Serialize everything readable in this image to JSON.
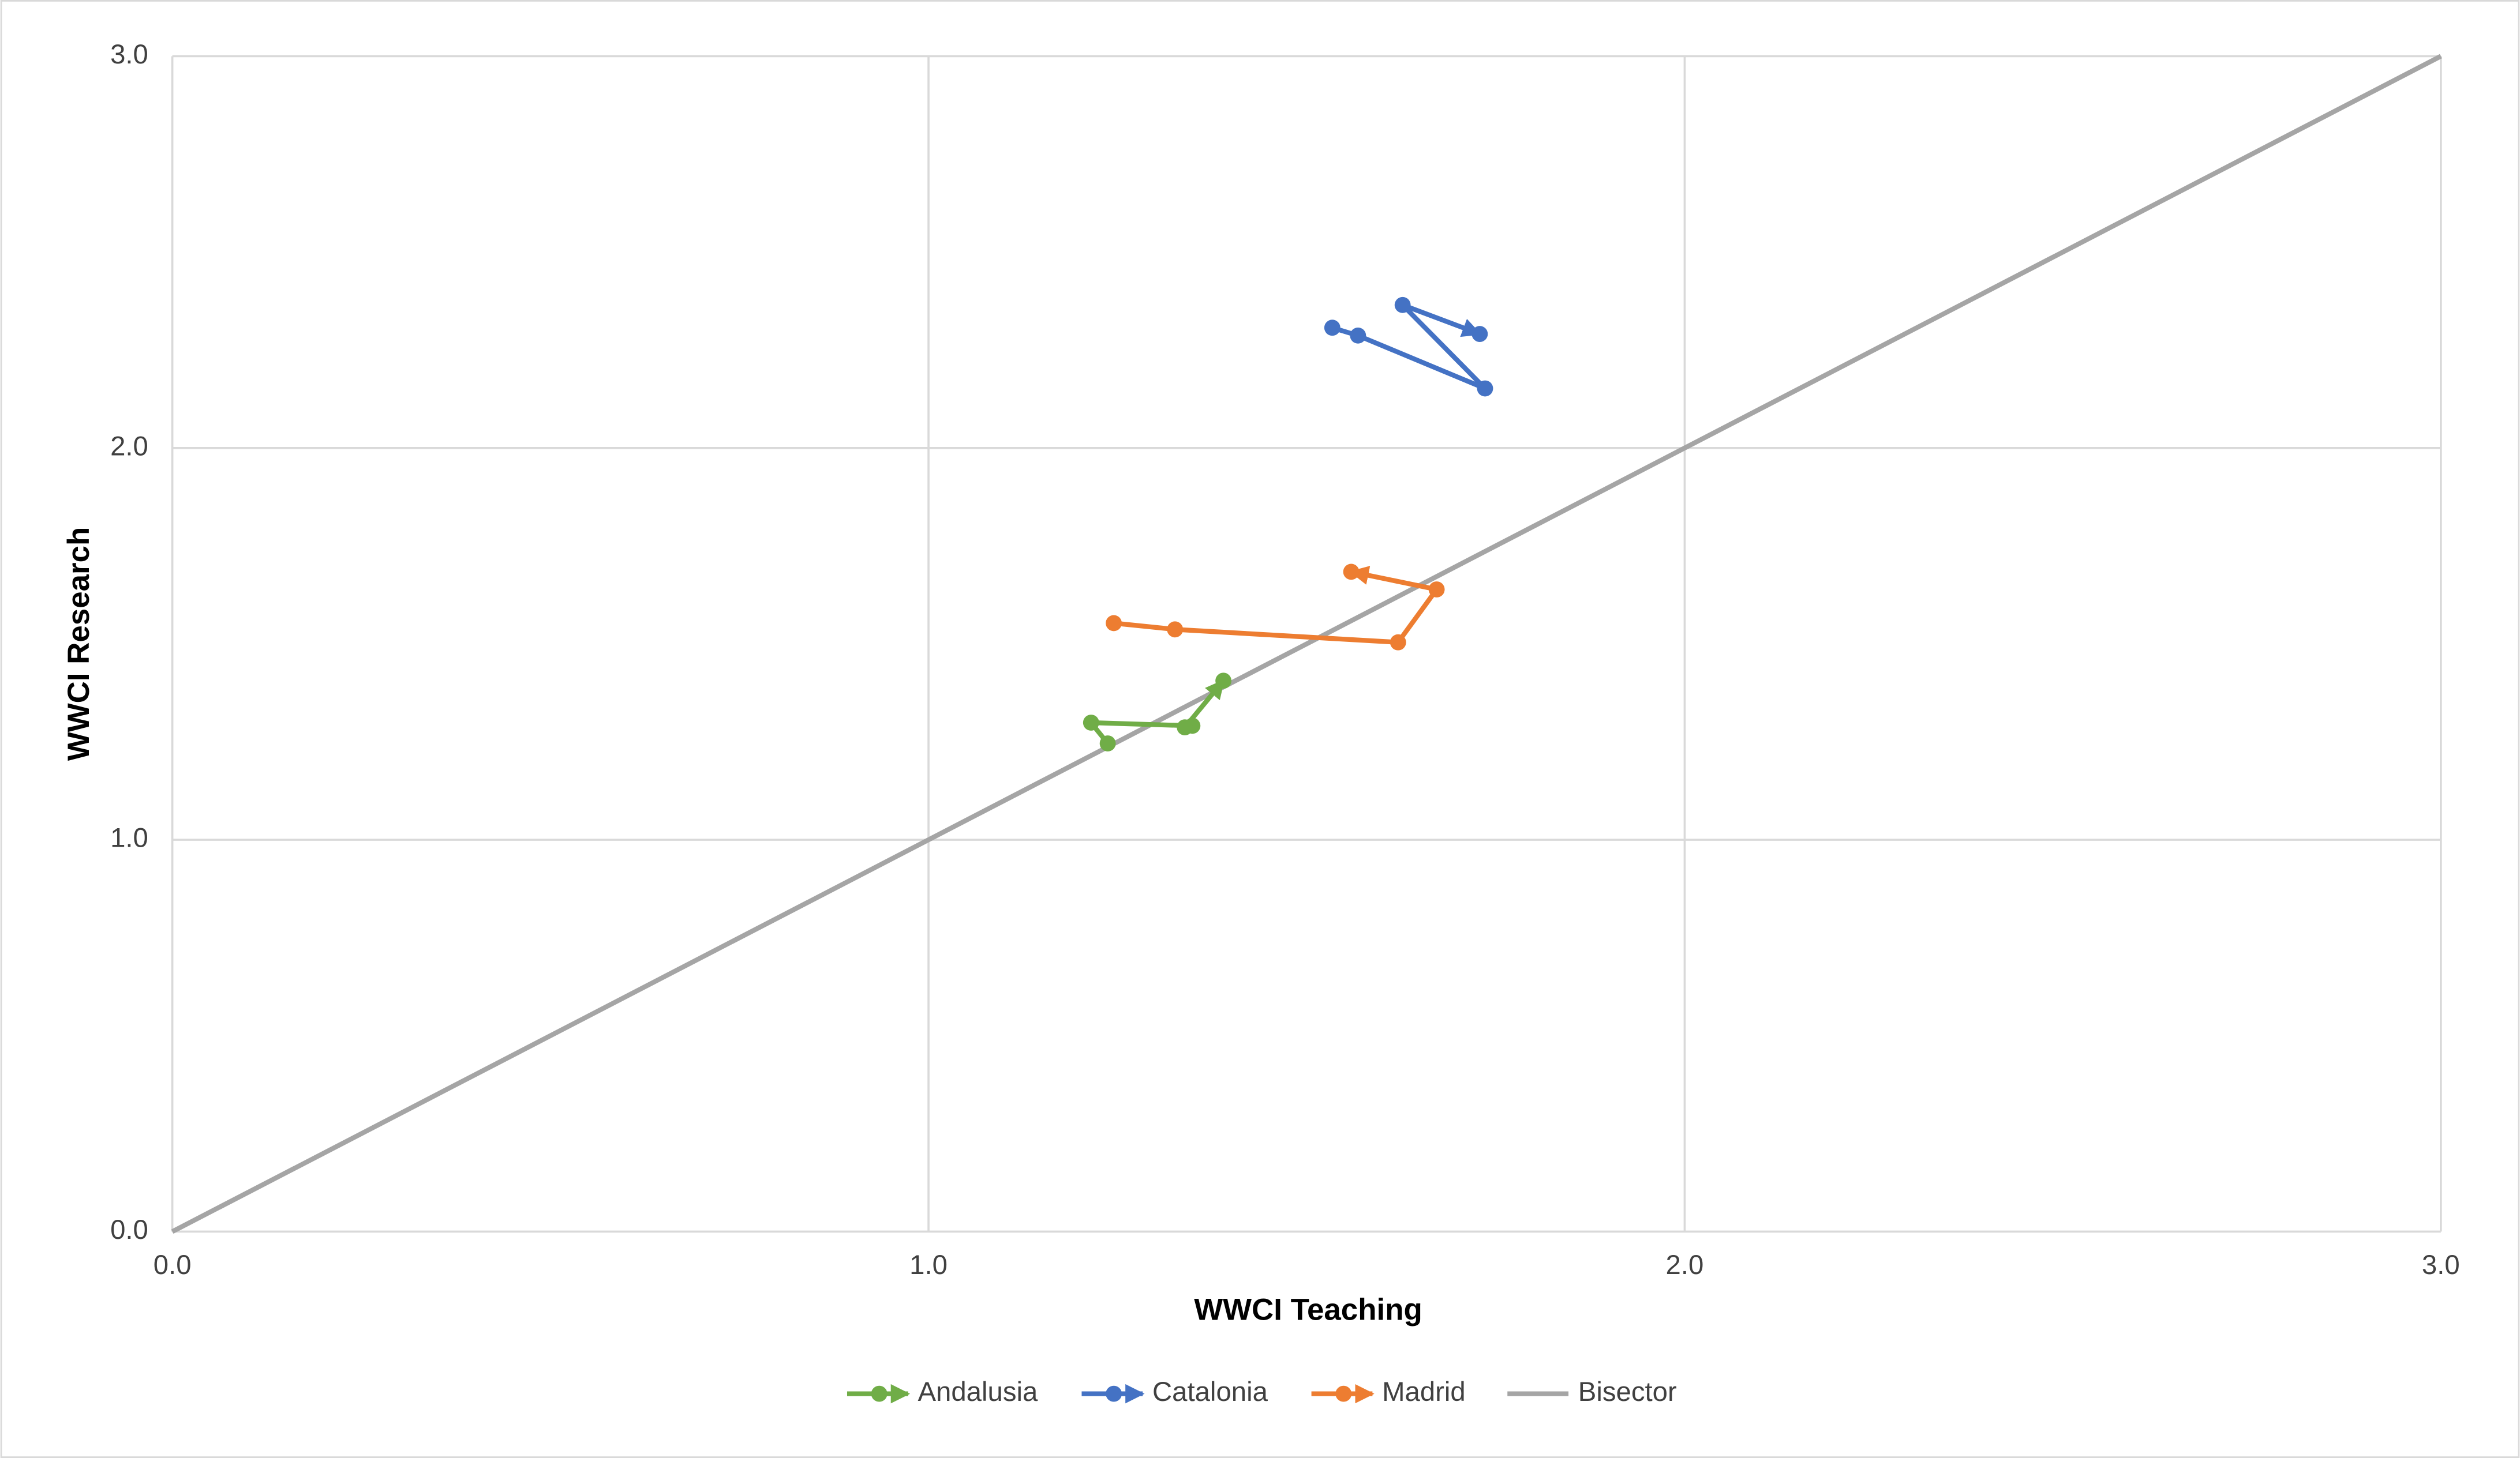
{
  "chart_data": {
    "type": "scatter",
    "x_label": "WWCI Teaching",
    "y_label": "WWCI Research",
    "xlim": [
      0,
      3
    ],
    "ylim": [
      0,
      3
    ],
    "xticks": [
      {
        "value": 0,
        "label": "0.0"
      },
      {
        "value": 1,
        "label": "1.0"
      },
      {
        "value": 2,
        "label": "2.0"
      },
      {
        "value": 3,
        "label": "3.0"
      }
    ],
    "yticks": [
      {
        "value": 0,
        "label": "0.0"
      },
      {
        "value": 1,
        "label": "1.0"
      },
      {
        "value": 2,
        "label": "2.0"
      },
      {
        "value": 3,
        "label": "3.0"
      }
    ],
    "grid": true,
    "legend": "bottom",
    "series": [
      {
        "name": "Andalusia",
        "color": "#70ad47",
        "marker": "circle",
        "arrow": true,
        "x": [
          1.237,
          1.215,
          1.349,
          1.339,
          1.39
        ],
        "values": [
          1.246,
          1.299,
          1.291,
          1.287,
          1.406
        ]
      },
      {
        "name": "Catalonia",
        "color": "#4472c4",
        "marker": "circle",
        "arrow": true,
        "x": [
          1.534,
          1.568,
          1.736,
          1.627,
          1.729
        ],
        "values": [
          2.307,
          2.287,
          2.152,
          2.365,
          2.291
        ]
      },
      {
        "name": "Madrid",
        "color": "#ed7d31",
        "marker": "circle",
        "arrow": true,
        "x": [
          1.245,
          1.326,
          1.621,
          1.672,
          1.559
        ],
        "values": [
          1.553,
          1.537,
          1.504,
          1.639,
          1.684
        ]
      },
      {
        "name": "Bisector",
        "color": "#a5a5a5",
        "marker": "none",
        "arrow": false,
        "x": [
          0,
          3
        ],
        "values": [
          0,
          3
        ]
      }
    ]
  }
}
